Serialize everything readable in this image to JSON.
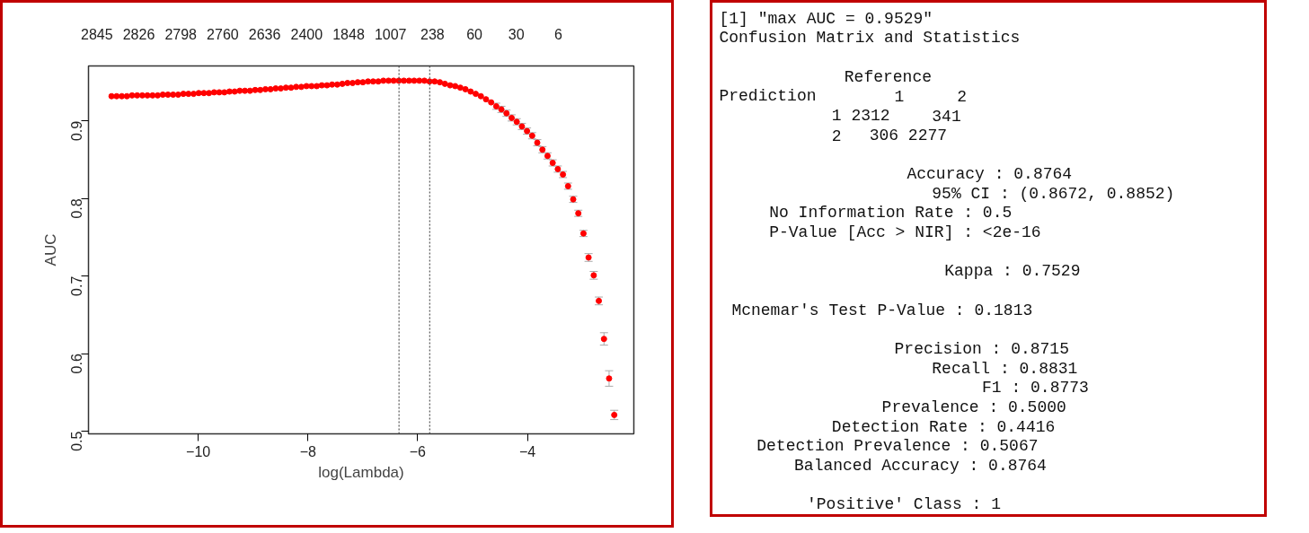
{
  "chart_data": [
    {
      "type": "scatter",
      "xlabel": "log(Lambda)",
      "ylabel": "AUC",
      "marker": "circle",
      "grid": false,
      "xlim": [
        -12.0,
        -2.06
      ],
      "ylim": [
        0.4966,
        0.971
      ],
      "xticks": [
        -10,
        -8,
        -6,
        -4
      ],
      "yticks": [
        0.5,
        0.6,
        0.7,
        0.8,
        0.9
      ],
      "annotations": [
        "2845",
        "2826",
        "2798",
        "2760",
        "2636",
        "2400",
        "1848",
        "1007",
        "238",
        "60",
        "30",
        "6"
      ],
      "ref_lines": [
        {
          "axis": "x",
          "value": -6.34,
          "label": null,
          "color": "#555555",
          "line_style": "dotted"
        },
        {
          "axis": "x",
          "value": -5.78,
          "label": null,
          "color": "#555555",
          "line_style": "dotted"
        }
      ],
      "x": [
        -11.58,
        -11.487,
        -11.393,
        -11.3,
        -11.206,
        -11.113,
        -11.019,
        -10.926,
        -10.832,
        -10.739,
        -10.645,
        -10.552,
        -10.458,
        -10.365,
        -10.271,
        -10.178,
        -10.084,
        -9.991,
        -9.897,
        -9.804,
        -9.71,
        -9.617,
        -9.523,
        -9.43,
        -9.336,
        -9.243,
        -9.149,
        -9.056,
        -8.962,
        -8.869,
        -8.775,
        -8.682,
        -8.588,
        -8.495,
        -8.401,
        -8.308,
        -8.214,
        -8.121,
        -8.027,
        -7.934,
        -7.84,
        -7.747,
        -7.653,
        -7.56,
        -7.466,
        -7.373,
        -7.279,
        -7.186,
        -7.092,
        -6.999,
        -6.905,
        -6.812,
        -6.718,
        -6.625,
        -6.531,
        -6.438,
        -6.344,
        -6.251,
        -6.157,
        -6.064,
        -5.97,
        -5.877,
        -5.783,
        -5.69,
        -5.596,
        -5.503,
        -5.409,
        -5.316,
        -5.222,
        -5.129,
        -5.035,
        -4.942,
        -4.848,
        -4.755,
        -4.661,
        -4.568,
        -4.474,
        -4.381,
        -4.287,
        -4.194,
        -4.1,
        -4.007,
        -3.913,
        -3.82,
        -3.726,
        -3.633,
        -3.539,
        -3.446,
        -3.352,
        -3.259,
        -3.165,
        -3.072,
        -2.978,
        -2.885,
        -2.791,
        -2.698,
        -2.604,
        -2.511,
        -2.417
      ],
      "series": [
        {
          "color": "#ff0000",
          "values": [
            0.932,
            0.932,
            0.932,
            0.932,
            0.933,
            0.933,
            0.933,
            0.933,
            0.933,
            0.933,
            0.934,
            0.934,
            0.934,
            0.934,
            0.935,
            0.935,
            0.935,
            0.936,
            0.936,
            0.936,
            0.937,
            0.937,
            0.937,
            0.938,
            0.938,
            0.939,
            0.939,
            0.939,
            0.94,
            0.94,
            0.941,
            0.941,
            0.942,
            0.942,
            0.943,
            0.943,
            0.944,
            0.944,
            0.945,
            0.945,
            0.945,
            0.946,
            0.946,
            0.947,
            0.947,
            0.948,
            0.949,
            0.949,
            0.95,
            0.95,
            0.951,
            0.951,
            0.951,
            0.952,
            0.952,
            0.952,
            0.952,
            0.952,
            0.952,
            0.952,
            0.952,
            0.952,
            0.951,
            0.951,
            0.95,
            0.948,
            0.946,
            0.945,
            0.943,
            0.941,
            0.938,
            0.935,
            0.932,
            0.928,
            0.924,
            0.919,
            0.915,
            0.91,
            0.904,
            0.899,
            0.893,
            0.887,
            0.881,
            0.872,
            0.863,
            0.855,
            0.846,
            0.838,
            0.831,
            0.816,
            0.799,
            0.781,
            0.755,
            0.724,
            0.701,
            0.668,
            0.619,
            0.568,
            0.521
          ],
          "errors": [
            null,
            null,
            null,
            null,
            null,
            null,
            null,
            null,
            null,
            null,
            null,
            null,
            null,
            null,
            null,
            null,
            null,
            null,
            null,
            null,
            null,
            null,
            null,
            null,
            null,
            null,
            null,
            null,
            null,
            null,
            null,
            null,
            null,
            null,
            null,
            null,
            null,
            null,
            null,
            null,
            null,
            null,
            null,
            null,
            null,
            null,
            null,
            null,
            null,
            null,
            null,
            null,
            null,
            null,
            null,
            null,
            null,
            null,
            null,
            null,
            null,
            null,
            null,
            null,
            null,
            null,
            null,
            null,
            null,
            null,
            null,
            null,
            null,
            null,
            null,
            0.004,
            0.004,
            0.004,
            0.004,
            0.004,
            0.004,
            0.004,
            0.004,
            0.004,
            0.004,
            0.004,
            0.004,
            0.004,
            0.004,
            0.004,
            0.004,
            0.004,
            0.004,
            0.005,
            0.005,
            0.005,
            0.008,
            0.01,
            0.006
          ]
        }
      ]
    },
    {
      "type": "other",
      "annotations": [
        "[1] \"max AUC = 0.9529\"\nConfusion Matrix and Statistics",
        "          Reference\nPrediction    1    2\n         1 2312  341\n         2  306 2277",
        "               Accuracy : 0.8764\n                 95% CI : (0.8672, 0.8852)\n    No Information Rate : 0.5\n    P-Value [Acc > NIR] : <2e-16",
        "                  Kappa : 0.7529",
        " Mcnemar's Test P-Value : 0.1813",
        "              Precision : 0.8715\n                 Recall : 0.8831\n                     F1 : 0.8773\n             Prevalence : 0.5000\n         Detection Rate : 0.4416\n   Detection Prevalence : 0.5067\n      Balanced Accuracy : 0.8764",
        "       'Positive' Class : 1"
      ]
    }
  ]
}
